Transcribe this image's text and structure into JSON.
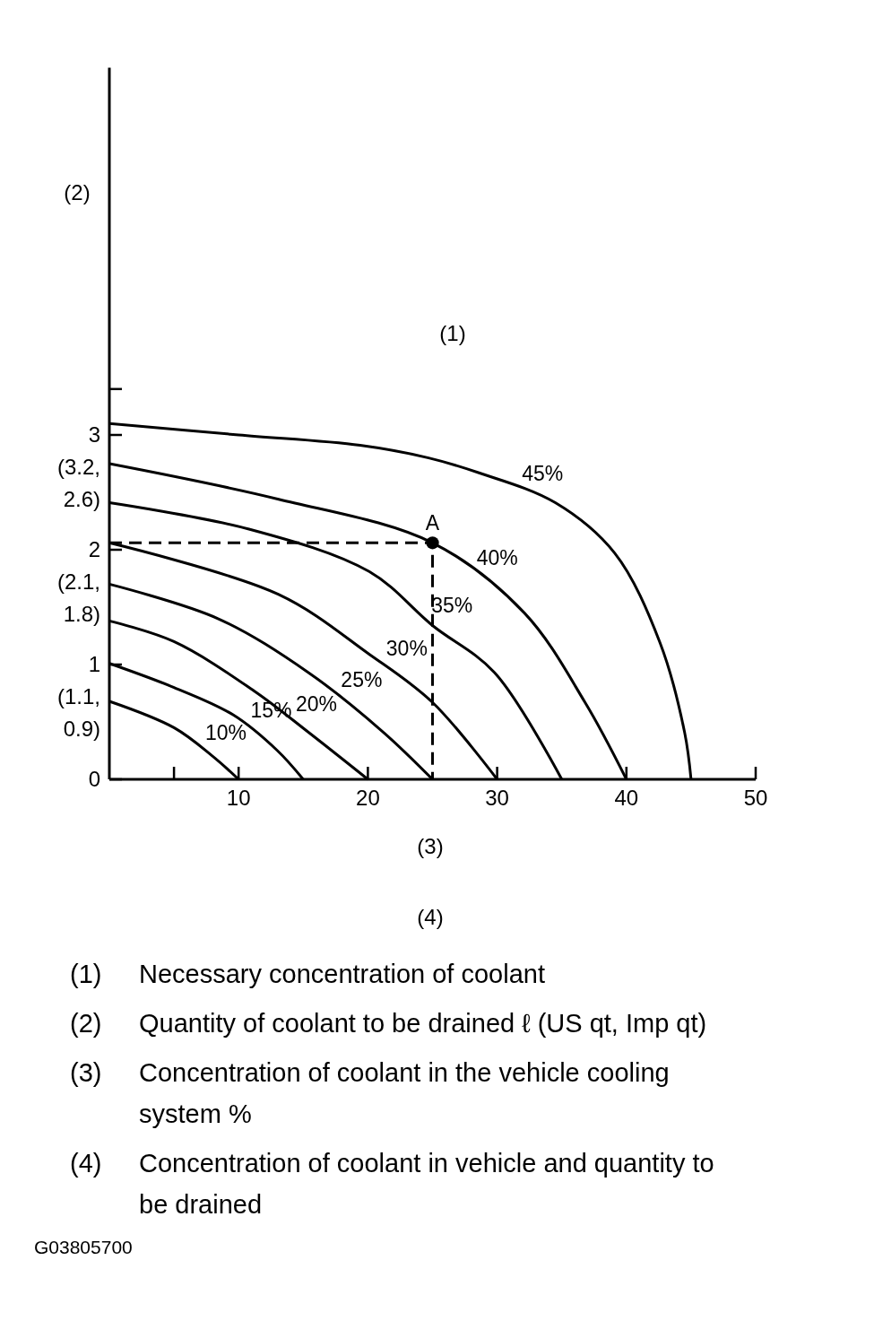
{
  "chart_data": {
    "type": "line",
    "title": "(4)",
    "xlabel": "(3)",
    "ylabel": "(2)",
    "legend_title": "(1)",
    "xlim": [
      0,
      50
    ],
    "ylim": [
      0,
      6.2
    ],
    "xticks": [
      {
        "value": 5,
        "label": null
      },
      10,
      20,
      30,
      40,
      50
    ],
    "yticks": [
      0,
      1,
      2,
      3,
      {
        "value": 3.4,
        "label": null
      }
    ],
    "grid": false,
    "legend": false,
    "marker": "none",
    "line_style": "solid",
    "series": [
      {
        "name": "10%",
        "color": "#000000",
        "x": [
          0,
          5,
          8,
          10
        ],
        "values": [
          0.68,
          0.45,
          0.2,
          0
        ]
      },
      {
        "name": "15%",
        "color": "#000000",
        "x": [
          0,
          5,
          9.6,
          13,
          15
        ],
        "values": [
          1.01,
          0.8,
          0.56,
          0.25,
          0
        ]
      },
      {
        "name": "20%",
        "color": "#000000",
        "x": [
          0,
          5,
          11.2,
          15.4,
          20
        ],
        "values": [
          1.38,
          1.2,
          0.77,
          0.41,
          0
        ]
      },
      {
        "name": "25%",
        "color": "#000000",
        "x": [
          0,
          8.4,
          15.4,
          21.2,
          25
        ],
        "values": [
          1.7,
          1.4,
          0.93,
          0.41,
          0
        ]
      },
      {
        "name": "30%",
        "color": "#000000",
        "x": [
          0,
          13.1,
          20.1,
          25,
          30
        ],
        "values": [
          2.06,
          1.61,
          1.09,
          0.67,
          0
        ]
      },
      {
        "name": "35%",
        "color": "#000000",
        "x": [
          0,
          10.8,
          20.1,
          25,
          29.8,
          35
        ],
        "values": [
          2.41,
          2.18,
          1.81,
          1.34,
          0.93,
          0
        ]
      },
      {
        "name": "40%",
        "color": "#000000",
        "x": [
          0,
          13.1,
          25,
          32.1,
          36.8,
          40
        ],
        "values": [
          2.75,
          2.44,
          2.06,
          1.45,
          0.67,
          0
        ]
      },
      {
        "name": "45%",
        "color": "#000000",
        "x": [
          0,
          10,
          19.4,
          24.7,
          28.6,
          34.5,
          39.1,
          42.6,
          44.5,
          45
        ],
        "values": [
          3.1,
          3.0,
          2.91,
          2.8,
          2.67,
          2.41,
          1.97,
          1.19,
          0.41,
          0
        ]
      },
      {
        "type": "line",
        "line_style": "dashed",
        "color": "#000000",
        "x": [
          0,
          25,
          25
        ],
        "values": [
          2.06,
          2.06,
          0
        ]
      },
      {
        "type": "scatter",
        "name": "A",
        "marker": "circle",
        "color": "#000000",
        "x": [
          25
        ],
        "values": [
          2.06
        ]
      }
    ],
    "annotations": [
      "(1.1, 0.9)",
      "(2.1, 1.8)",
      "(3.2, 2.6)",
      "(1) Necessary concentration of coolant",
      "(2) Quantity of coolant to be drained ℓ (US qt, Imp qt)",
      "(3) Concentration of coolant in the vehicle cooling system %",
      "(4) Concentration of coolant in vehicle and quantity to be drained",
      "G03805700"
    ]
  }
}
